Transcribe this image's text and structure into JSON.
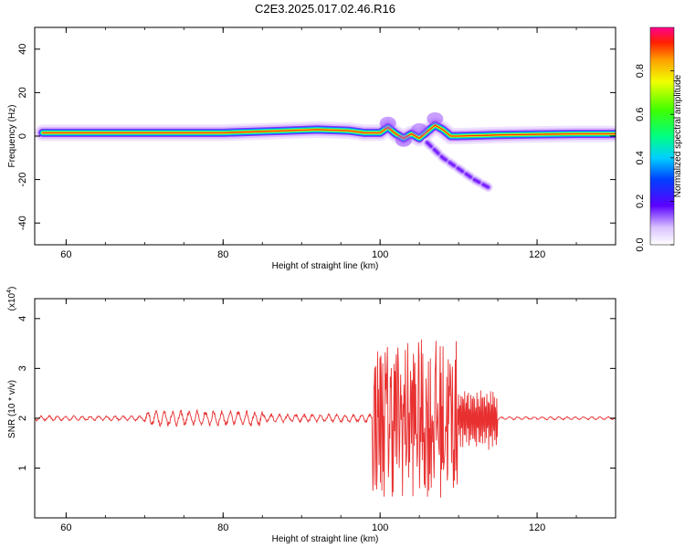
{
  "title": "C2E3.2025.017.02.46.R16",
  "chart_data": [
    {
      "type": "heatmap",
      "xlabel": "Height of straight line (km)",
      "ylabel": "Frequency (Hz)",
      "xlim": [
        56,
        130
      ],
      "ylim": [
        -50,
        50
      ],
      "xticks": [
        "60",
        "80",
        "100",
        "120"
      ],
      "yticks": [
        "40",
        "20",
        "0",
        "-20",
        "-40"
      ],
      "colorbar": {
        "label": "Normalized spectral amplitude",
        "range": [
          0,
          1
        ],
        "ticks": [
          "0.0",
          "0.2",
          "0.4",
          "0.6",
          "0.8"
        ]
      },
      "ridge": {
        "x": [
          57,
          70,
          80,
          84,
          88,
          92,
          96,
          98,
          100,
          101,
          102,
          103,
          104,
          105,
          106,
          107,
          108,
          109,
          110,
          115,
          120,
          125,
          130
        ],
        "y": [
          1.5,
          1.5,
          1.5,
          2,
          2.5,
          3,
          2.5,
          1.5,
          1.5,
          4,
          1,
          -1,
          1,
          -1,
          2,
          5,
          3,
          0,
          0,
          0.5,
          0.8,
          1,
          1
        ]
      },
      "branch": {
        "x": [
          106,
          108,
          110,
          112,
          114
        ],
        "y": [
          -3,
          -10,
          -15,
          -20,
          -24
        ]
      }
    },
    {
      "type": "line",
      "xlabel": "Height of straight line (km)",
      "ylabel": "SNR (10 * v/v)",
      "ymultiplier": "(x10",
      "ymultiplier_exp": "4",
      "ymultiplier_close": ")",
      "xlim": [
        56,
        130
      ],
      "ylim": [
        0,
        4.4
      ],
      "xticks": [
        "60",
        "80",
        "100",
        "120"
      ],
      "yticks": [
        "1",
        "2",
        "3",
        "4"
      ],
      "series": [
        {
          "color": "#e83030",
          "baseline": 2.0,
          "segments": [
            {
              "x_from": 56,
              "x_to": 70,
              "amp": 0.05
            },
            {
              "x_from": 70,
              "x_to": 85,
              "amp": 0.15
            },
            {
              "x_from": 85,
              "x_to": 99,
              "amp": 0.08
            },
            {
              "x_from": 99,
              "x_to": 110,
              "amp": 1.6
            },
            {
              "x_from": 110,
              "x_to": 115,
              "amp": 0.65
            },
            {
              "x_from": 115,
              "x_to": 130,
              "amp": 0.03
            }
          ]
        }
      ]
    }
  ]
}
